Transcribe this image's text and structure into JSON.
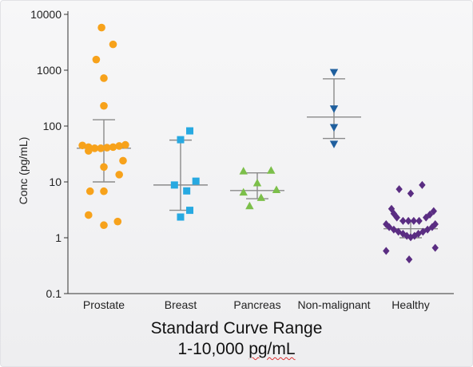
{
  "colors": {
    "prostate": "#f7a21b",
    "breast": "#27a9e1",
    "pancreas": "#7cbf4a",
    "non_malignant": "#1f5f9e",
    "healthy": "#5a2d82",
    "error_bar": "#8a8a8a",
    "axis": "#333333"
  },
  "caption": {
    "line1": "Standard Curve Range",
    "line2_prefix": "1-10,000 ",
    "line2_unit": "pg/mL"
  },
  "chart_data": {
    "type": "scatter",
    "title": "",
    "xlabel": "",
    "ylabel": "Conc (pg/mL)",
    "yscale": "log",
    "ylim": [
      0.1,
      10000
    ],
    "y_ticks": [
      {
        "value": 0.1,
        "label": "0.1"
      },
      {
        "value": 1,
        "label": "1"
      },
      {
        "value": 10,
        "label": "10"
      },
      {
        "value": 100,
        "label": "100"
      },
      {
        "value": 1000,
        "label": "1000"
      },
      {
        "value": 10000,
        "label": "10000"
      }
    ],
    "grid": false,
    "categories": [
      "Prostate",
      "Breast",
      "Pancreas",
      "Non-malignant",
      "Healthy"
    ],
    "series": [
      {
        "name": "Prostate",
        "marker": "circle",
        "color_key": "prostate",
        "mean": 40,
        "err_upper": 130,
        "err_lower": 10,
        "points": [
          {
            "dx": -0.03,
            "y": 5800
          },
          {
            "dx": 0.12,
            "y": 2900
          },
          {
            "dx": -0.1,
            "y": 1550
          },
          {
            "dx": 0.0,
            "y": 720
          },
          {
            "dx": 0.0,
            "y": 230
          },
          {
            "dx": -0.28,
            "y": 45
          },
          {
            "dx": -0.2,
            "y": 42
          },
          {
            "dx": -0.12,
            "y": 40
          },
          {
            "dx": -0.04,
            "y": 40
          },
          {
            "dx": 0.04,
            "y": 41
          },
          {
            "dx": 0.12,
            "y": 42
          },
          {
            "dx": 0.2,
            "y": 44
          },
          {
            "dx": 0.28,
            "y": 46
          },
          {
            "dx": -0.2,
            "y": 36
          },
          {
            "dx": 0.25,
            "y": 24
          },
          {
            "dx": 0.0,
            "y": 18.5
          },
          {
            "dx": 0.2,
            "y": 13.5
          },
          {
            "dx": -0.18,
            "y": 6.8
          },
          {
            "dx": 0.0,
            "y": 6.8
          },
          {
            "dx": -0.2,
            "y": 2.55
          },
          {
            "dx": 0.18,
            "y": 1.95
          },
          {
            "dx": 0.0,
            "y": 1.68
          }
        ]
      },
      {
        "name": "Breast",
        "marker": "square",
        "color_key": "breast",
        "mean": 8.8,
        "err_upper": 56,
        "err_lower": 3.1,
        "points": [
          {
            "dx": 0.12,
            "y": 82
          },
          {
            "dx": 0.0,
            "y": 57
          },
          {
            "dx": 0.2,
            "y": 10.3
          },
          {
            "dx": -0.08,
            "y": 8.8
          },
          {
            "dx": 0.08,
            "y": 6.9
          },
          {
            "dx": 0.12,
            "y": 3.1
          },
          {
            "dx": 0.0,
            "y": 2.35
          }
        ]
      },
      {
        "name": "Pancreas",
        "marker": "triangle-up",
        "color_key": "pancreas",
        "mean": 7,
        "err_upper": 14.5,
        "err_lower": 5,
        "points": [
          {
            "dx": -0.18,
            "y": 15.5
          },
          {
            "dx": 0.18,
            "y": 16
          },
          {
            "dx": 0.0,
            "y": 9.5
          },
          {
            "dx": -0.18,
            "y": 6.5
          },
          {
            "dx": 0.25,
            "y": 7.2
          },
          {
            "dx": 0.05,
            "y": 5.2
          },
          {
            "dx": -0.1,
            "y": 3.7
          }
        ]
      },
      {
        "name": "Non-malignant",
        "marker": "triangle-down",
        "color_key": "non_malignant",
        "mean": 145,
        "err_upper": 700,
        "err_lower": 60,
        "points": [
          {
            "dx": 0.0,
            "y": 920
          },
          {
            "dx": 0.0,
            "y": 205
          },
          {
            "dx": 0.0,
            "y": 95
          },
          {
            "dx": 0.0,
            "y": 48
          }
        ]
      },
      {
        "name": "Healthy",
        "marker": "diamond",
        "color_key": "healthy",
        "mean": 1.45,
        "err_upper": 2.0,
        "err_lower": 1.0,
        "points": [
          {
            "dx": -0.15,
            "y": 7.4
          },
          {
            "dx": 0.15,
            "y": 8.8
          },
          {
            "dx": 0.0,
            "y": 6.2
          },
          {
            "dx": -0.25,
            "y": 3.3
          },
          {
            "dx": 0.3,
            "y": 3.0
          },
          {
            "dx": -0.22,
            "y": 2.7
          },
          {
            "dx": 0.25,
            "y": 2.6
          },
          {
            "dx": -0.18,
            "y": 2.3
          },
          {
            "dx": 0.2,
            "y": 2.3
          },
          {
            "dx": -0.1,
            "y": 2.0
          },
          {
            "dx": -0.03,
            "y": 2.0
          },
          {
            "dx": 0.04,
            "y": 2.0
          },
          {
            "dx": 0.11,
            "y": 2.0
          },
          {
            "dx": -0.32,
            "y": 1.75
          },
          {
            "dx": 0.32,
            "y": 1.75
          },
          {
            "dx": -0.28,
            "y": 1.55
          },
          {
            "dx": 0.28,
            "y": 1.55
          },
          {
            "dx": -0.22,
            "y": 1.4
          },
          {
            "dx": 0.22,
            "y": 1.4
          },
          {
            "dx": -0.16,
            "y": 1.28
          },
          {
            "dx": 0.16,
            "y": 1.28
          },
          {
            "dx": -0.1,
            "y": 1.18
          },
          {
            "dx": 0.1,
            "y": 1.18
          },
          {
            "dx": -0.05,
            "y": 1.08
          },
          {
            "dx": 0.05,
            "y": 1.08
          },
          {
            "dx": 0.0,
            "y": 1.02
          },
          {
            "dx": -0.32,
            "y": 0.58
          },
          {
            "dx": 0.32,
            "y": 0.66
          },
          {
            "dx": -0.02,
            "y": 0.41
          }
        ]
      }
    ]
  }
}
